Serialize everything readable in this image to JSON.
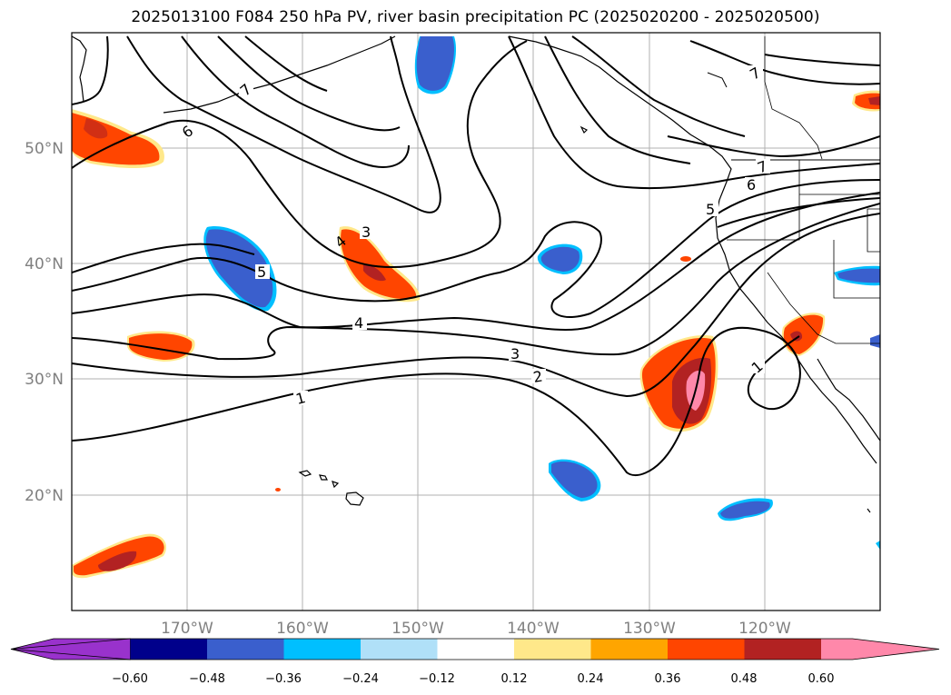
{
  "title": "2025013100 F084 250 hPa PV, river basin precipitation PC (2025020200 - 2025020500)",
  "lat_labels": [
    {
      "lat": 50,
      "text": "50°N"
    },
    {
      "lat": 40,
      "text": "40°N"
    },
    {
      "lat": 30,
      "text": "30°N"
    },
    {
      "lat": 20,
      "text": "20°N"
    }
  ],
  "lon_labels": [
    {
      "lon": -170,
      "text": "170°W"
    },
    {
      "lon": -160,
      "text": "160°W"
    },
    {
      "lon": -150,
      "text": "150°W"
    },
    {
      "lon": -140,
      "text": "140°W"
    },
    {
      "lon": -130,
      "text": "130°W"
    },
    {
      "lon": -120,
      "text": "120°W"
    }
  ],
  "colorbar": {
    "colors": [
      "#9932cc",
      "#00008b",
      "#3a5fcd",
      "#00bfff",
      "#b0e0f8",
      "#ffffff",
      "#ffe88a",
      "#ffa500",
      "#ff4500",
      "#b22222",
      "#ff88aa"
    ],
    "tick_labels": [
      "−0.60",
      "−0.48",
      "−0.36",
      "−0.24",
      "−0.12",
      "0.12",
      "0.24",
      "0.36",
      "0.48",
      "0.60"
    ]
  },
  "contour_labels": [
    "1",
    "2",
    "3",
    "4",
    "5",
    "6",
    "7"
  ]
}
